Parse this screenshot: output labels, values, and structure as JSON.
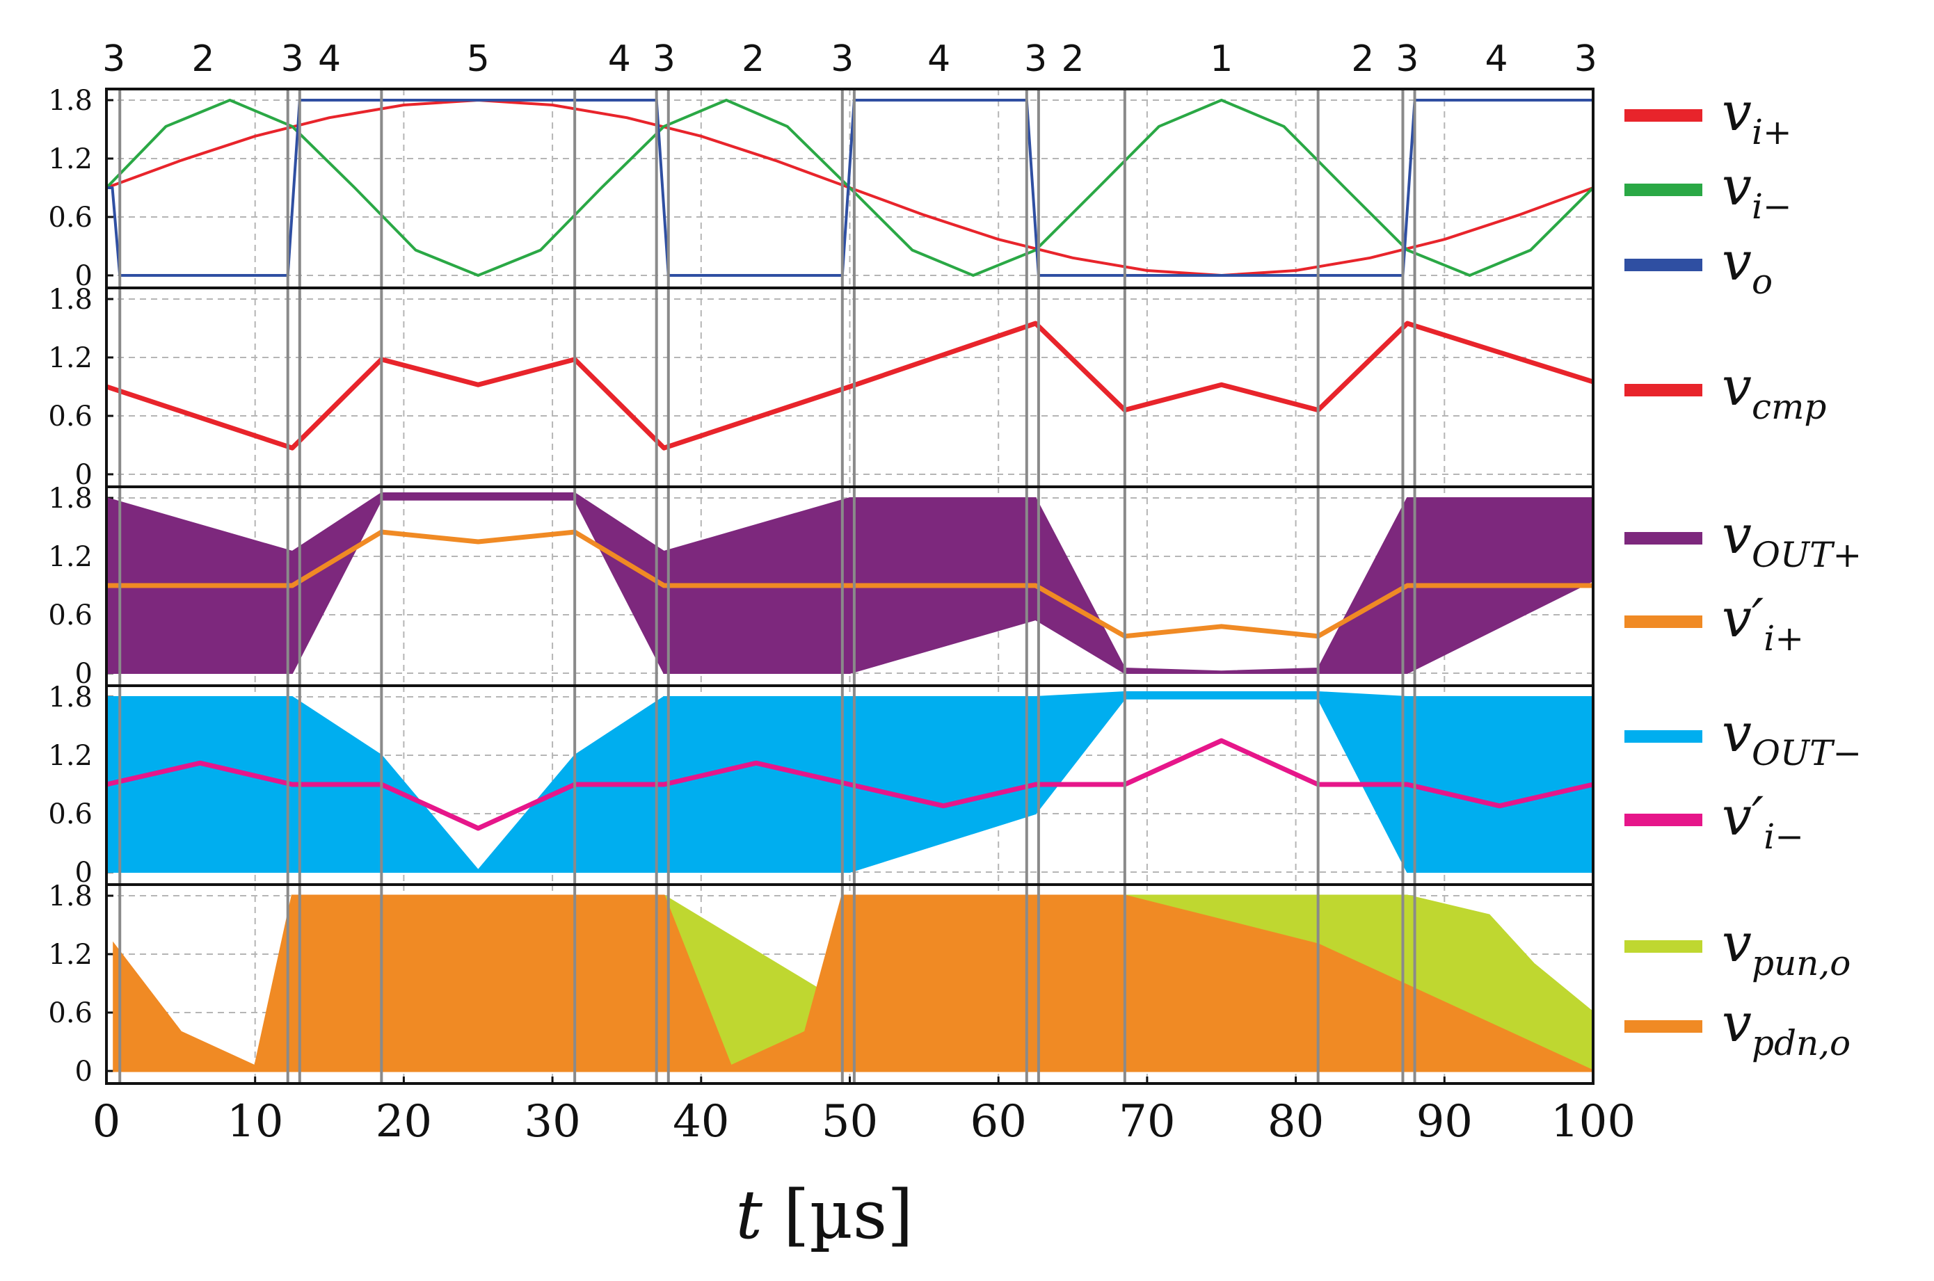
{
  "chart_data": {
    "type": "line",
    "x_label": "t [µs]",
    "x_label_var": "t",
    "x_label_unit": "[µs]",
    "xlim": [
      0,
      100
    ],
    "x_ticks": [
      0,
      10,
      20,
      30,
      40,
      50,
      60,
      70,
      80,
      90,
      100
    ],
    "y_ticks": [
      0,
      0.6,
      1.2,
      1.8
    ],
    "y_tick_labels": [
      "0",
      "0.6",
      "1.2",
      "1.8"
    ],
    "ylim": [
      -0.05,
      1.95
    ],
    "grid": true,
    "region_labels": [
      {
        "t": 0.5,
        "label": "3"
      },
      {
        "t": 6.5,
        "label": "2"
      },
      {
        "t": 12.5,
        "label": "3"
      },
      {
        "t": 15,
        "label": "4"
      },
      {
        "t": 25,
        "label": "5"
      },
      {
        "t": 34.5,
        "label": "4"
      },
      {
        "t": 37.5,
        "label": "3"
      },
      {
        "t": 43.5,
        "label": "2"
      },
      {
        "t": 49.5,
        "label": "3"
      },
      {
        "t": 56,
        "label": "4"
      },
      {
        "t": 62.5,
        "label": "3"
      },
      {
        "t": 65,
        "label": "2"
      },
      {
        "t": 75,
        "label": "1"
      },
      {
        "t": 84.5,
        "label": "2"
      },
      {
        "t": 87.5,
        "label": "3"
      },
      {
        "t": 93.5,
        "label": "4"
      },
      {
        "t": 99.5,
        "label": "3"
      }
    ],
    "region_boundaries": [
      0.9,
      12.2,
      13,
      18.5,
      31.5,
      37,
      37.8,
      49.5,
      50.3,
      61.9,
      62.7,
      68.5,
      81.5,
      87.2,
      88
    ],
    "panels": [
      {
        "name": "panel-inputs",
        "series": [
          {
            "name": "v_i+",
            "legend": "v",
            "legend_sub": "i+",
            "color": "#e8242b",
            "t": [
              0,
              5,
              10,
              15,
              20,
              25,
              30,
              35,
              40,
              45,
              50,
              55,
              60,
              65,
              70,
              75,
              80,
              85,
              90,
              95,
              100
            ],
            "v": [
              0.9,
              1.18,
              1.43,
              1.62,
              1.75,
              1.8,
              1.75,
              1.62,
              1.43,
              1.18,
              0.9,
              0.62,
              0.37,
              0.18,
              0.05,
              0,
              0.05,
              0.18,
              0.37,
              0.62,
              0.9
            ]
          },
          {
            "name": "v_i-",
            "legend": "v",
            "legend_sub": "i−",
            "color": "#2aa845",
            "t": [
              0,
              4,
              8.3,
              12.5,
              16.7,
              20.8,
              25,
              29.2,
              33.3,
              37.5,
              41.7,
              45.8,
              50,
              54.2,
              58.3,
              62.5,
              66.7,
              70.8,
              75,
              79.2,
              83.3,
              87.5,
              91.7,
              95.8,
              100
            ],
            "v": [
              0.9,
              1.53,
              1.8,
              1.53,
              0.9,
              0.26,
              0,
              0.26,
              0.9,
              1.53,
              1.8,
              1.53,
              0.9,
              0.26,
              0,
              0.26,
              0.9,
              1.53,
              1.8,
              1.53,
              0.9,
              0.26,
              0,
              0.26,
              0.9
            ]
          },
          {
            "name": "v_o",
            "legend": "v",
            "legend_sub": "o",
            "color": "#2f4fa2",
            "t": [
              0,
              0.4,
              0.9,
              12.2,
              13,
              37,
              37.8,
              49.5,
              50.3,
              61.9,
              62.7,
              87.2,
              88,
              100
            ],
            "v": [
              0.9,
              0.9,
              0,
              0,
              1.8,
              1.8,
              0,
              0,
              1.8,
              1.8,
              0,
              0,
              1.8,
              1.8
            ]
          }
        ]
      },
      {
        "name": "panel-comparator",
        "series": [
          {
            "name": "v_cmp",
            "legend": "v",
            "legend_sub": "cmp",
            "color": "#e8242b",
            "t": [
              0,
              12.5,
              18.5,
              25,
              31.5,
              37.5,
              50,
              62.5,
              68.5,
              75,
              81.5,
              87.5,
              100
            ],
            "v": [
              0.9,
              0.27,
              1.18,
              0.92,
              1.18,
              0.27,
              0.9,
              1.55,
              0.66,
              0.92,
              0.66,
              1.55,
              0.95
            ]
          }
        ]
      },
      {
        "name": "panel-out-plus",
        "series": [
          {
            "name": "v_OUT+",
            "legend": "v",
            "legend_sub": "OUT+",
            "color": "#7d287d",
            "t": [
              0,
              12.5,
              18.5,
              25,
              31.5,
              37.5,
              50,
              62.5,
              68.5,
              75,
              81.5,
              87.5,
              100
            ],
            "v_min": [
              0,
              0,
              1.78,
              1.78,
              1.78,
              0,
              0,
              0.55,
              0,
              0,
              0,
              0,
              0.95
            ],
            "v_max": [
              1.8,
              1.25,
              1.85,
              1.85,
              1.85,
              1.25,
              1.8,
              1.8,
              0.05,
              0.02,
              0.05,
              1.8,
              1.8
            ]
          },
          {
            "name": "v'_i+",
            "legend": "v′",
            "legend_sub": "i+",
            "color": "#f08a24",
            "t": [
              0,
              12.5,
              18.5,
              25,
              31.5,
              37.5,
              50,
              62.5,
              68.5,
              75,
              81.5,
              87.5,
              100
            ],
            "v": [
              0.9,
              0.9,
              1.45,
              1.35,
              1.45,
              0.9,
              0.9,
              0.9,
              0.38,
              0.48,
              0.38,
              0.9,
              0.9
            ]
          }
        ]
      },
      {
        "name": "panel-out-minus",
        "series": [
          {
            "name": "v_OUT-",
            "legend": "v",
            "legend_sub": "OUT−",
            "color": "#00aeef",
            "t": [
              0,
              12.5,
              18.5,
              25,
              31.5,
              37.5,
              50,
              62.5,
              68.5,
              75,
              81.5,
              87.5,
              100
            ],
            "v_min": [
              0,
              0,
              0,
              0,
              0,
              0,
              0,
              0.6,
              1.78,
              1.78,
              1.78,
              0,
              0
            ],
            "v_max": [
              1.8,
              1.8,
              1.2,
              0.02,
              1.2,
              1.8,
              1.8,
              1.8,
              1.85,
              1.85,
              1.85,
              1.8,
              1.8
            ]
          },
          {
            "name": "v'_i-",
            "legend": "v′",
            "legend_sub": "i−",
            "color": "#e6168a",
            "t": [
              0,
              6.3,
              12.5,
              18.5,
              25,
              31.5,
              37.5,
              43.7,
              50,
              56.3,
              62.5,
              68.5,
              75,
              81.5,
              87.5,
              93.7,
              100
            ],
            "v": [
              0.9,
              1.12,
              0.9,
              0.9,
              0.45,
              0.9,
              0.9,
              1.12,
              0.9,
              0.68,
              0.9,
              0.9,
              1.35,
              0.9,
              0.9,
              0.68,
              0.9
            ]
          }
        ]
      },
      {
        "name": "panel-drivers",
        "series": [
          {
            "name": "v_pun,o",
            "legend": "v",
            "legend_sub": "pun,o",
            "color": "#bfd730",
            "t": [
              12.5,
              16.5,
              18.5,
              31.5,
              32.5,
              37.5,
              50.5,
              55,
              62.5,
              87.5,
              93,
              96,
              100
            ],
            "v": [
              1.8,
              1.8,
              0,
              0,
              1.8,
              1.8,
              0.6,
              1.5,
              1.8,
              1.8,
              1.6,
              1.1,
              0.6
            ]
          },
          {
            "name": "v_pdn,o",
            "legend": "v",
            "legend_sub": "pdn,o",
            "color": "#f08a24",
            "t": [
              0.5,
              5,
              10,
              12.5,
              37.5,
              42,
              47,
              49.5,
              62.5,
              68.5,
              81.5,
              100
            ],
            "v": [
              1.3,
              0.4,
              0.05,
              1.8,
              1.8,
              0.05,
              0.4,
              1.8,
              1.8,
              1.8,
              1.3,
              0
            ]
          }
        ]
      }
    ]
  }
}
